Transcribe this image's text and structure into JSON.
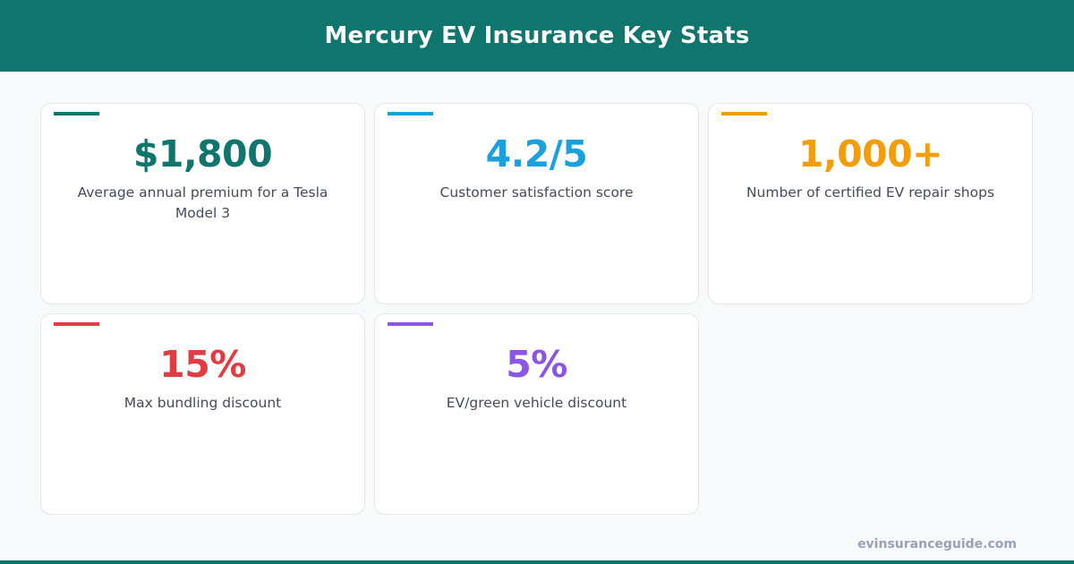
{
  "title": "Mercury EV Insurance Key Stats",
  "stats": [
    {
      "value": "$1,800",
      "label": "Average annual premium for a Tesla Model 3",
      "color": "#10766d"
    },
    {
      "value": "4.2/5",
      "label": "Customer satisfaction score",
      "color": "#1aa0dc"
    },
    {
      "value": "1,000+",
      "label": "Number of certified EV repair shops",
      "color": "#f29d0c"
    },
    {
      "value": "15%",
      "label": "Max bundling discount",
      "color": "#e23c43"
    },
    {
      "value": "5%",
      "label": "EV/green vehicle discount",
      "color": "#8b55e6"
    }
  ],
  "footer": "evinsuranceguide.com"
}
